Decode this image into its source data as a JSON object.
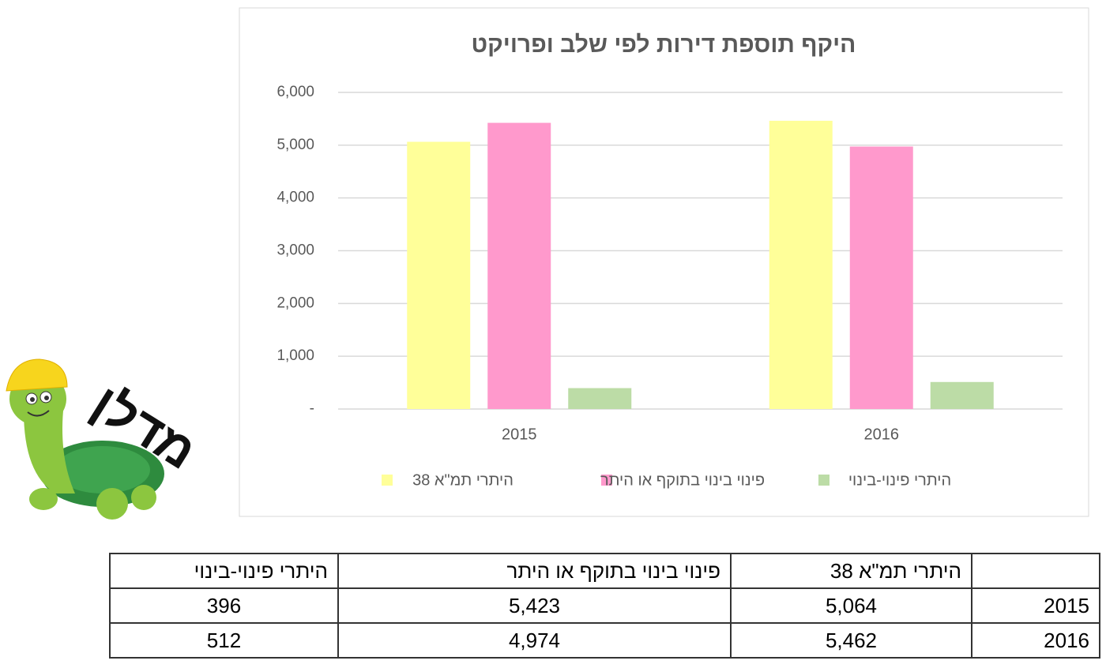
{
  "chart_data": {
    "type": "bar",
    "title": "היקף תוספת דירות לפי שלב ופרויקט",
    "categories": [
      "2015",
      "2016"
    ],
    "series": [
      {
        "name": "היתרי תמ\"א 38",
        "color": "#ffff99",
        "values": [
          5064,
          5462
        ]
      },
      {
        "name": "פינוי בינוי בתוקף או היתר",
        "color": "#ff99cc",
        "values": [
          5423,
          4974
        ]
      },
      {
        "name": "היתרי פינוי-בינוי",
        "color": "#bcdca6",
        "values": [
          396,
          512
        ]
      }
    ],
    "ylim": [
      0,
      6000
    ],
    "yticks": [
      {
        "value": 0,
        "label": "-"
      },
      {
        "value": 1000,
        "label": "1,000"
      },
      {
        "value": 2000,
        "label": "2,000"
      },
      {
        "value": 3000,
        "label": "3,000"
      },
      {
        "value": 4000,
        "label": "4,000"
      },
      {
        "value": 5000,
        "label": "5,000"
      },
      {
        "value": 6000,
        "label": "6,000"
      }
    ],
    "grid": true,
    "legend": "bottom"
  },
  "table": {
    "header": [
      "היתרי תמ\"א 38",
      "פינוי בינוי בתוקף או היתר",
      "היתרי פינוי-בינוי"
    ],
    "rows": [
      [
        "2015",
        "5,064",
        "5,423",
        "396"
      ],
      [
        "2016",
        "5,462",
        "4,974",
        "512"
      ]
    ]
  },
  "logo": {
    "text": "מדלן"
  }
}
